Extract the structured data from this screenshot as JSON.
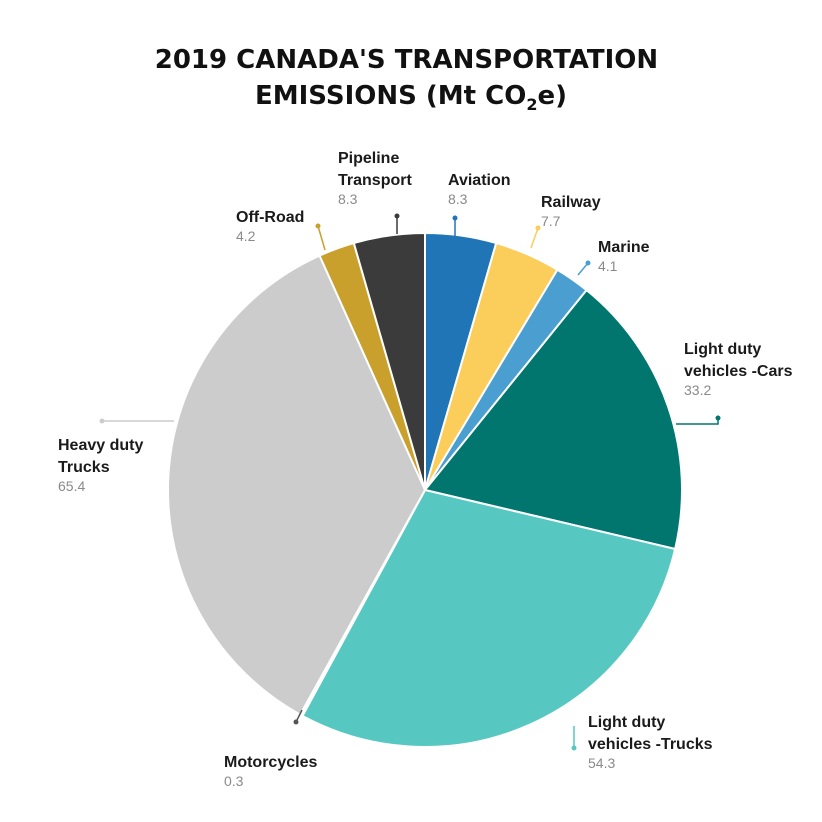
{
  "chart_data": {
    "type": "pie",
    "title": {
      "prefix": "2019 CANADA'S TRANSPORTATION",
      "line2_prefix": "EMISSIONS (Mt CO",
      "subscript": "2",
      "line2_suffix": "e)"
    },
    "slices": [
      {
        "label_lines": [
          "Aviation"
        ],
        "value_text": "8.3",
        "value": 8.3,
        "color": "#1f75b6"
      },
      {
        "label_lines": [
          "Railway"
        ],
        "value_text": "7.7",
        "value": 7.7,
        "color": "#fbcd5b"
      },
      {
        "label_lines": [
          "Marine"
        ],
        "value_text": "4.1",
        "value": 4.1,
        "color": "#4a9fd0"
      },
      {
        "label_lines": [
          "Light duty",
          "vehicles -Cars"
        ],
        "value_text": "33.2",
        "value": 33.2,
        "color": "#00766f"
      },
      {
        "label_lines": [
          "Light duty",
          "vehicles -Trucks"
        ],
        "value_text": "54.3",
        "value": 54.3,
        "color": "#56c8c1"
      },
      {
        "label_lines": [
          "Motorcycles"
        ],
        "value_text": "0.3",
        "value": 0.3,
        "color": "#ffffff"
      },
      {
        "label_lines": [
          "Heavy duty",
          "Trucks"
        ],
        "value_text": "65.4",
        "value": 65.4,
        "color": "#cccccc"
      },
      {
        "label_lines": [
          "Off-Road"
        ],
        "value_text": "4.2",
        "value": 4.2,
        "color": "#c9a02c"
      },
      {
        "label_lines": [
          "Pipeline",
          "Transport"
        ],
        "value_text": "8.3",
        "value": 8.3,
        "color": "#3b3b3b"
      }
    ]
  }
}
